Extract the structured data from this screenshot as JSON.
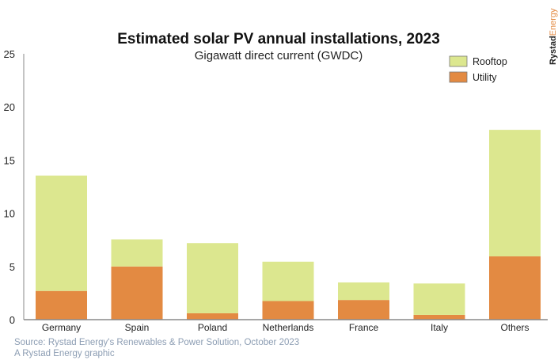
{
  "chart_data": {
    "type": "bar",
    "stacked": true,
    "title": "Estimated solar PV annual installations, 2023",
    "subtitle": "Gigawatt direct current (GWDC)",
    "xlabel": "",
    "ylabel": "",
    "ylim": [
      0,
      25
    ],
    "yticks": [
      0,
      5,
      10,
      15,
      20,
      25
    ],
    "grid": false,
    "legend_position": "top-right",
    "categories": [
      "Germany",
      "Spain",
      "Poland",
      "Netherlands",
      "France",
      "Italy",
      "Others"
    ],
    "series": [
      {
        "name": "Utility",
        "color": "#e38a42",
        "values": [
          2.7,
          5.0,
          0.6,
          1.75,
          1.85,
          0.45,
          5.95
        ]
      },
      {
        "name": "Rooftop",
        "color": "#dce78f",
        "values": [
          10.85,
          2.55,
          6.6,
          3.7,
          1.65,
          2.95,
          11.9
        ]
      }
    ],
    "legend_order": [
      "Rooftop",
      "Utility"
    ]
  },
  "source": "Source: Rystad Energy's Renewables & Power Solution, October 2023",
  "credit": "A Rystad Energy graphic",
  "logo": {
    "part1": "Rystad",
    "part2": "Energy"
  }
}
